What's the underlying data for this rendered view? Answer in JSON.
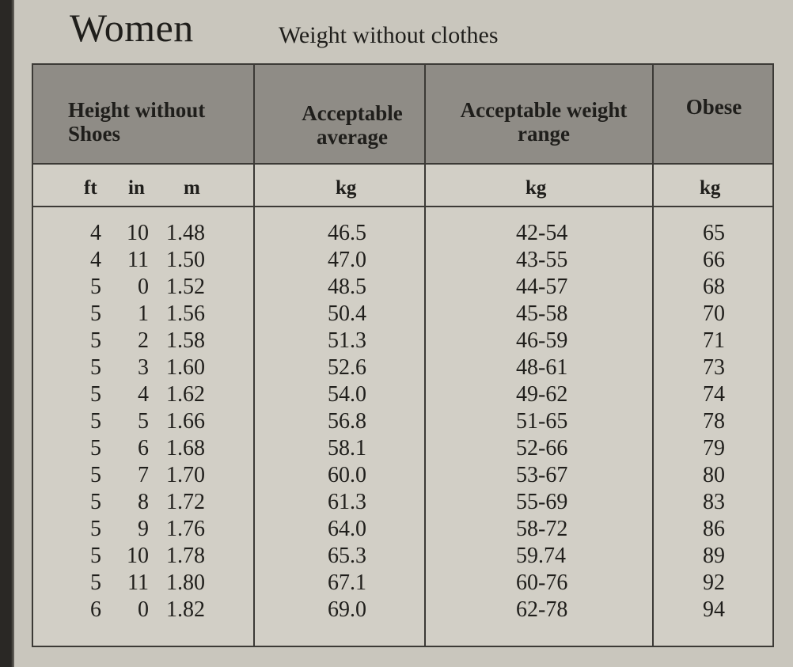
{
  "title": "Women",
  "subtitle": "Weight without clothes",
  "headers": {
    "height": "Height without Shoes",
    "avg": "Acceptable average",
    "range": "Acceptable weight range",
    "obese": "Obese"
  },
  "units": {
    "ft": "ft",
    "in": "in",
    "m": "m",
    "avg": "kg",
    "range": "kg",
    "obese": "kg"
  },
  "rows": [
    {
      "ft": "4",
      "in": "10",
      "m": "1.48",
      "avg": "46.5",
      "range": "42-54",
      "obese": "65"
    },
    {
      "ft": "4",
      "in": "11",
      "m": "1.50",
      "avg": "47.0",
      "range": "43-55",
      "obese": "66"
    },
    {
      "ft": "5",
      "in": "0",
      "m": "1.52",
      "avg": "48.5",
      "range": "44-57",
      "obese": "68"
    },
    {
      "ft": "5",
      "in": "1",
      "m": "1.56",
      "avg": "50.4",
      "range": "45-58",
      "obese": "70"
    },
    {
      "ft": "5",
      "in": "2",
      "m": "1.58",
      "avg": "51.3",
      "range": "46-59",
      "obese": "71"
    },
    {
      "ft": "5",
      "in": "3",
      "m": "1.60",
      "avg": "52.6",
      "range": "48-61",
      "obese": "73"
    },
    {
      "ft": "5",
      "in": "4",
      "m": "1.62",
      "avg": "54.0",
      "range": "49-62",
      "obese": "74"
    },
    {
      "ft": "5",
      "in": "5",
      "m": "1.66",
      "avg": "56.8",
      "range": "51-65",
      "obese": "78"
    },
    {
      "ft": "5",
      "in": "6",
      "m": "1.68",
      "avg": "58.1",
      "range": "52-66",
      "obese": "79"
    },
    {
      "ft": "5",
      "in": "7",
      "m": "1.70",
      "avg": "60.0",
      "range": "53-67",
      "obese": "80"
    },
    {
      "ft": "5",
      "in": "8",
      "m": "1.72",
      "avg": "61.3",
      "range": "55-69",
      "obese": "83"
    },
    {
      "ft": "5",
      "in": "9",
      "m": "1.76",
      "avg": "64.0",
      "range": "58-72",
      "obese": "86"
    },
    {
      "ft": "5",
      "in": "10",
      "m": "1.78",
      "avg": "65.3",
      "range": "59.74",
      "obese": "89"
    },
    {
      "ft": "5",
      "in": "11",
      "m": "1.80",
      "avg": "67.1",
      "range": "60-76",
      "obese": "92"
    },
    {
      "ft": "6",
      "in": "0",
      "m": "1.82",
      "avg": "69.0",
      "range": "62-78",
      "obese": "94"
    }
  ]
}
